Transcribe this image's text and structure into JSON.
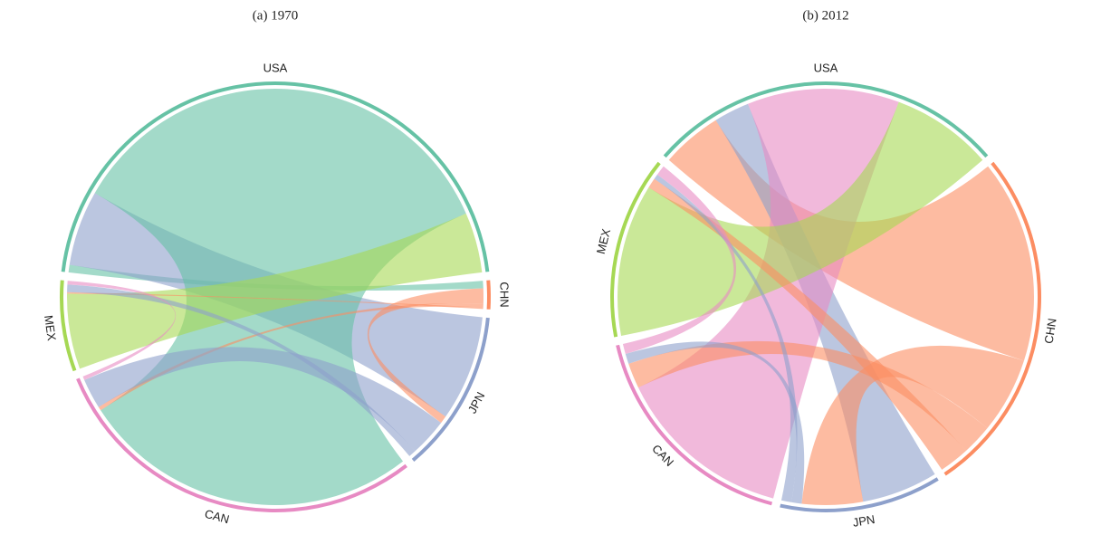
{
  "chart_data": [
    {
      "type": "chord",
      "title": "(a) 1970",
      "groups": [
        "USA",
        "CHN",
        "JPN",
        "CAN",
        "MEX"
      ],
      "colors": [
        "#66c2a5",
        "#fc8d62",
        "#8da0cb",
        "#e78ac3",
        "#a6d854"
      ],
      "matrix": [
        [
          0,
          1,
          10,
          60,
          8
        ],
        [
          1,
          0,
          2,
          0.5,
          0.2
        ],
        [
          14,
          1,
          0,
          5,
          1
        ],
        [
          45,
          0.5,
          4,
          0,
          0.5
        ],
        [
          10,
          0.2,
          1,
          0.5,
          0
        ]
      ]
    },
    {
      "type": "chord",
      "title": "(b) 2012",
      "groups": [
        "USA",
        "CHN",
        "JPN",
        "CAN",
        "MEX"
      ],
      "colors": [
        "#66c2a5",
        "#fc8d62",
        "#8da0cb",
        "#e78ac3",
        "#a6d854"
      ],
      "matrix": [
        [
          0,
          12,
          7,
          30,
          20
        ],
        [
          40,
          0,
          15,
          6,
          6
        ],
        [
          15,
          12,
          0,
          2,
          2
        ],
        [
          35,
          5,
          2,
          0,
          2
        ],
        [
          30,
          2,
          1,
          2,
          0
        ]
      ]
    }
  ]
}
